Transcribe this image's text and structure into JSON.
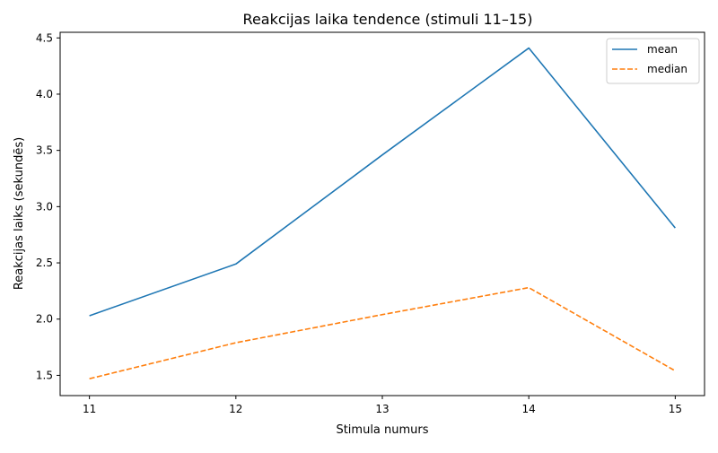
{
  "chart_data": {
    "type": "line",
    "title": "Reakcijas laika tendence (stimuli 11–15)",
    "xlabel": "Stimula numurs",
    "ylabel": "Reakcijas laiks (sekundēs)",
    "x": [
      11,
      12,
      13,
      14,
      15
    ],
    "xlim": [
      10.8,
      15.2
    ],
    "ylim": [
      1.32,
      4.55
    ],
    "xticks": [
      11,
      12,
      13,
      14,
      15
    ],
    "yticks": [
      1.5,
      2.0,
      2.5,
      3.0,
      3.5,
      4.0,
      4.5
    ],
    "legend_position": "top-right",
    "grid": false,
    "series": [
      {
        "name": "mean",
        "color": "#1f77b4",
        "style": "solid",
        "values": [
          2.03,
          2.49,
          3.46,
          4.41,
          2.81
        ]
      },
      {
        "name": "median",
        "color": "#ff7f0e",
        "style": "dashed",
        "values": [
          1.47,
          1.79,
          2.04,
          2.28,
          1.54
        ]
      }
    ]
  }
}
